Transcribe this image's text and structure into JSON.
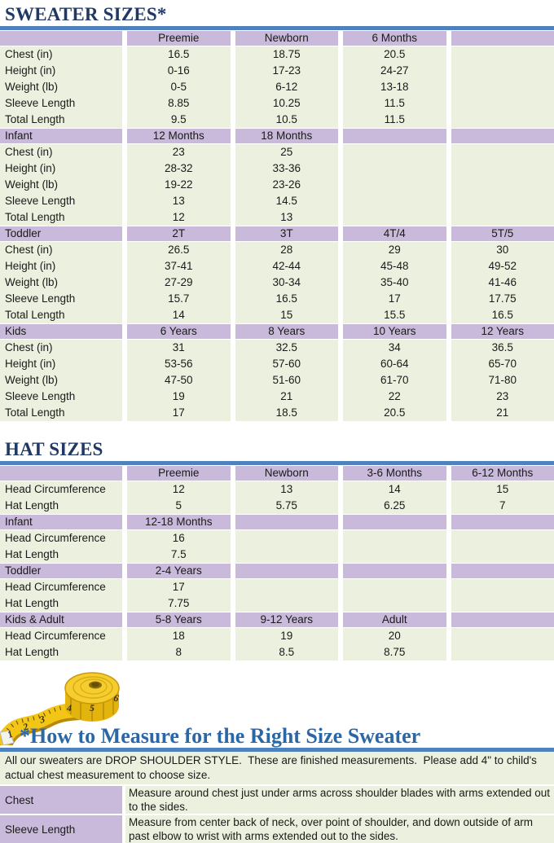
{
  "titles": {
    "sweater": "SWEATER SIZES*",
    "hat": "HAT SIZES"
  },
  "colors": {
    "heading_navy": "#1F3864",
    "heading_blue": "#2C67A5",
    "rule_blue": "#4F81BD",
    "header_purple": "#C9BADB",
    "row_green": "#EBF1DE",
    "tape_yellow": "#F2C517"
  },
  "sweater_table": {
    "sections": [
      {
        "label": "",
        "columns": [
          "Preemie",
          "Newborn",
          "6 Months",
          ""
        ],
        "rows": [
          {
            "label": "Chest (in)",
            "values": [
              "16.5",
              "18.75",
              "20.5",
              ""
            ]
          },
          {
            "label": "Height (in)",
            "values": [
              "0-16",
              "17-23",
              "24-27",
              ""
            ]
          },
          {
            "label": "Weight (lb)",
            "values": [
              "0-5",
              "6-12",
              "13-18",
              ""
            ]
          },
          {
            "label": "Sleeve Length",
            "values": [
              "8.85",
              "10.25",
              "11.5",
              ""
            ]
          },
          {
            "label": "Total Length",
            "values": [
              "9.5",
              "10.5",
              "11.5",
              ""
            ]
          }
        ]
      },
      {
        "label": "Infant",
        "columns": [
          "12 Months",
          "18 Months",
          "",
          ""
        ],
        "rows": [
          {
            "label": "Chest (in)",
            "values": [
              "23",
              "25",
              "",
              ""
            ]
          },
          {
            "label": "Height (in)",
            "values": [
              "28-32",
              "33-36",
              "",
              ""
            ]
          },
          {
            "label": "Weight (lb)",
            "values": [
              "19-22",
              "23-26",
              "",
              ""
            ]
          },
          {
            "label": "Sleeve Length",
            "values": [
              "13",
              "14.5",
              "",
              ""
            ]
          },
          {
            "label": "Total Length",
            "values": [
              "12",
              "13",
              "",
              ""
            ]
          }
        ]
      },
      {
        "label": "Toddler",
        "columns": [
          "2T",
          "3T",
          "4T/4",
          "5T/5"
        ],
        "rows": [
          {
            "label": "Chest (in)",
            "values": [
              "26.5",
              "28",
              "29",
              "30"
            ]
          },
          {
            "label": "Height (in)",
            "values": [
              "37-41",
              "42-44",
              "45-48",
              "49-52"
            ]
          },
          {
            "label": "Weight (lb)",
            "values": [
              "27-29",
              "30-34",
              "35-40",
              "41-46"
            ]
          },
          {
            "label": "Sleeve Length",
            "values": [
              "15.7",
              "16.5",
              "17",
              "17.75"
            ]
          },
          {
            "label": "Total Length",
            "values": [
              "14",
              "15",
              "15.5",
              "16.5"
            ]
          }
        ]
      },
      {
        "label": "Kids",
        "columns": [
          "6 Years",
          "8 Years",
          "10 Years",
          "12 Years"
        ],
        "rows": [
          {
            "label": "Chest (in)",
            "values": [
              "31",
              "32.5",
              "34",
              "36.5"
            ]
          },
          {
            "label": "Height (in)",
            "values": [
              "53-56",
              "57-60",
              "60-64",
              "65-70"
            ]
          },
          {
            "label": "Weight (lb)",
            "values": [
              "47-50",
              "51-60",
              "61-70",
              "71-80"
            ]
          },
          {
            "label": "Sleeve Length",
            "values": [
              "19",
              "21",
              "22",
              "23"
            ]
          },
          {
            "label": "Total Length",
            "values": [
              "17",
              "18.5",
              "20.5",
              "21"
            ]
          }
        ]
      }
    ]
  },
  "hat_table": {
    "sections": [
      {
        "label": "",
        "columns": [
          "Preemie",
          "Newborn",
          "3-6 Months",
          "6-12 Months"
        ],
        "rows": [
          {
            "label": "Head Circumference",
            "values": [
              "12",
              "13",
              "14",
              "15"
            ]
          },
          {
            "label": "Hat Length",
            "values": [
              "5",
              "5.75",
              "6.25",
              "7"
            ]
          }
        ]
      },
      {
        "label": "Infant",
        "columns": [
          "12-18 Months",
          "",
          "",
          ""
        ],
        "rows": [
          {
            "label": "Head Circumference",
            "values": [
              "16",
              "",
              "",
              ""
            ]
          },
          {
            "label": "Hat Length",
            "values": [
              "7.5",
              "",
              "",
              ""
            ]
          }
        ]
      },
      {
        "label": "Toddler",
        "columns": [
          "2-4 Years",
          "",
          "",
          ""
        ],
        "rows": [
          {
            "label": "Head Circumference",
            "values": [
              "17",
              "",
              "",
              ""
            ]
          },
          {
            "label": "Hat Length",
            "values": [
              "7.75",
              "",
              "",
              ""
            ]
          }
        ]
      },
      {
        "label": "Kids & Adult",
        "columns": [
          "5-8 Years",
          "9-12 Years",
          "Adult",
          ""
        ],
        "rows": [
          {
            "label": "Head Circumference",
            "values": [
              "18",
              "19",
              "20",
              ""
            ]
          },
          {
            "label": "Hat Length",
            "values": [
              "8",
              "8.5",
              "8.75",
              ""
            ]
          }
        ]
      }
    ]
  },
  "measure": {
    "title": "*How to Measure for the Right Size Sweater",
    "intro": "All our sweaters are DROP SHOULDER STYLE.  These are finished measurements.  Please add 4\" to child's actual chest measurement to choose size.",
    "rows": [
      {
        "label": "Chest",
        "text": "Measure around chest just under arms across shoulder blades with arms extended out to the sides."
      },
      {
        "label": "Sleeve Length",
        "text": "Measure from center back of neck, over point of shoulder, and down outside of arm past elbow to wrist with arms extended out to the sides."
      }
    ],
    "tape_numbers": [
      "1",
      "2",
      "3",
      "4",
      "5",
      "6"
    ]
  }
}
